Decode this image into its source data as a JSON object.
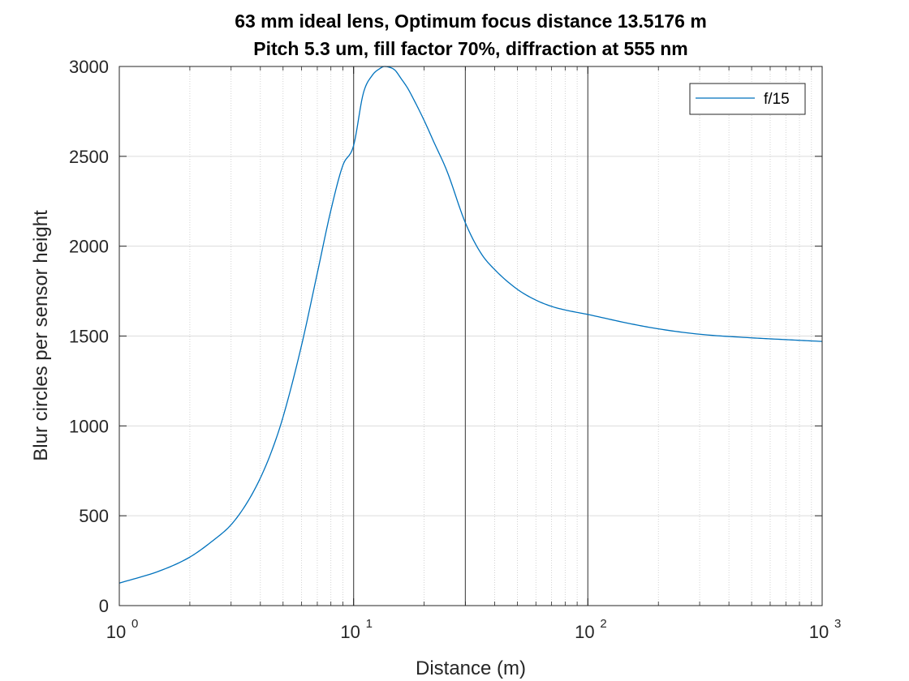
{
  "chart_data": {
    "type": "line",
    "title": "63 mm ideal lens, Optimum focus distance 13.5176 m",
    "subtitle": "Pitch 5.3 um, fill factor 70%, diffraction at 555 nm",
    "xlabel": "Distance (m)",
    "ylabel": "Blur circles per sensor height",
    "xscale": "log",
    "xlim": [
      1,
      1000
    ],
    "ylim": [
      0,
      3000
    ],
    "x_ticks": [
      {
        "base": "10",
        "exp": "0",
        "value": 1
      },
      {
        "base": "10",
        "exp": "1",
        "value": 10
      },
      {
        "base": "10",
        "exp": "2",
        "value": 100
      },
      {
        "base": "10",
        "exp": "3",
        "value": 1000
      }
    ],
    "y_ticks": [
      "0",
      "500",
      "1000",
      "1500",
      "2000",
      "2500",
      "3000"
    ],
    "grid": "on (major and minor)",
    "vertical_markers": [
      10,
      30,
      100
    ],
    "legend": {
      "placement": "top-right",
      "entries": [
        "f/15"
      ]
    },
    "series": [
      {
        "name": "f/15",
        "color": "#0072bd",
        "x": [
          1,
          1.5,
          2,
          2.5,
          3,
          3.5,
          4,
          4.5,
          5,
          6,
          7,
          8,
          9,
          10,
          11,
          12,
          13,
          13.5176,
          14,
          15,
          16,
          17,
          18,
          20,
          22,
          25,
          30,
          35,
          40,
          50,
          60,
          70,
          80,
          100,
          150,
          200,
          300,
          500,
          700,
          1000
        ],
        "y": [
          125,
          195,
          270,
          360,
          450,
          570,
          710,
          870,
          1050,
          1450,
          1850,
          2200,
          2450,
          2560,
          2850,
          2950,
          2990,
          3000,
          2998,
          2980,
          2930,
          2880,
          2820,
          2700,
          2580,
          2420,
          2130,
          1960,
          1870,
          1760,
          1700,
          1665,
          1645,
          1620,
          1570,
          1540,
          1510,
          1490,
          1480,
          1470
        ]
      }
    ]
  }
}
